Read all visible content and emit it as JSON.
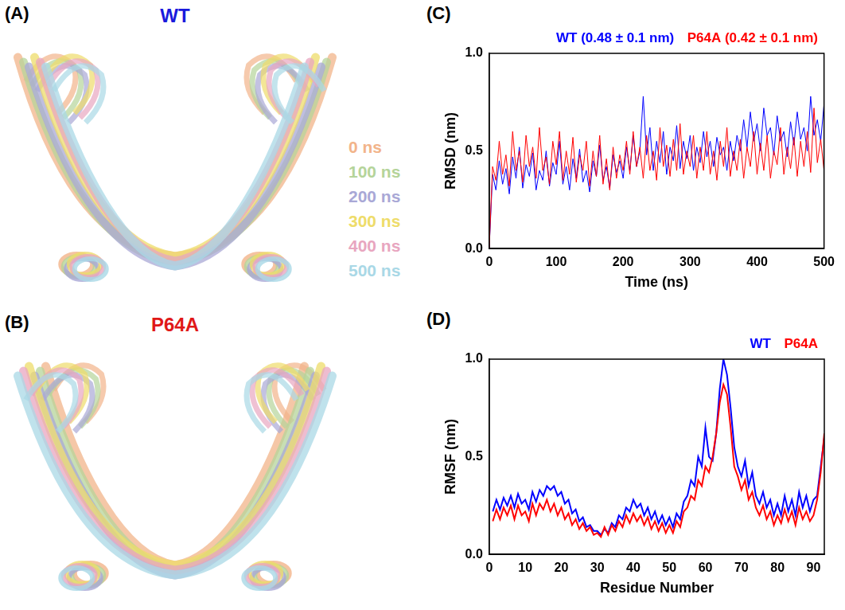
{
  "structure_panels": [
    {
      "letter": "(A)",
      "title": "WT",
      "title_color": "#1a1adc"
    },
    {
      "letter": "(B)",
      "title": "P64A",
      "title_color": "#e01818"
    }
  ],
  "time_legend": [
    {
      "label": "0 ns",
      "color": "#f2b48a"
    },
    {
      "label": "100 ns",
      "color": "#b5d49a"
    },
    {
      "label": "200 ns",
      "color": "#a9a8d6"
    },
    {
      "label": "300 ns",
      "color": "#eedc6a"
    },
    {
      "label": "400 ns",
      "color": "#e8a6c0"
    },
    {
      "label": "500 ns",
      "color": "#a9d8e6"
    }
  ],
  "chart_data": [
    {
      "panel": "(C)",
      "type": "line",
      "x_label": "Time (ns)",
      "y_label": "RMSD (nm)",
      "x": [
        0,
        5,
        10,
        15,
        20,
        25,
        30,
        35,
        40,
        45,
        50,
        55,
        60,
        65,
        70,
        75,
        80,
        85,
        90,
        95,
        100,
        105,
        110,
        115,
        120,
        125,
        130,
        135,
        140,
        145,
        150,
        155,
        160,
        165,
        170,
        175,
        180,
        185,
        190,
        195,
        200,
        205,
        210,
        215,
        220,
        225,
        230,
        235,
        240,
        245,
        250,
        255,
        260,
        265,
        270,
        275,
        280,
        285,
        290,
        295,
        300,
        305,
        310,
        315,
        320,
        325,
        330,
        335,
        340,
        345,
        350,
        355,
        360,
        365,
        370,
        375,
        380,
        385,
        390,
        395,
        400,
        405,
        410,
        415,
        420,
        425,
        430,
        435,
        440,
        445,
        450,
        455,
        460,
        465,
        470,
        475,
        480,
        485,
        490,
        495,
        500
      ],
      "series": [
        {
          "name": "WT (0.48 ± 0.1 nm)",
          "color": "#0000ff",
          "values": [
            0.0,
            0.38,
            0.3,
            0.45,
            0.33,
            0.41,
            0.28,
            0.47,
            0.36,
            0.52,
            0.31,
            0.43,
            0.37,
            0.49,
            0.3,
            0.4,
            0.35,
            0.5,
            0.32,
            0.44,
            0.38,
            0.55,
            0.33,
            0.42,
            0.3,
            0.46,
            0.36,
            0.51,
            0.34,
            0.4,
            0.29,
            0.45,
            0.37,
            0.53,
            0.35,
            0.42,
            0.31,
            0.48,
            0.39,
            0.45,
            0.36,
            0.52,
            0.4,
            0.58,
            0.42,
            0.5,
            0.78,
            0.48,
            0.62,
            0.4,
            0.55,
            0.44,
            0.6,
            0.38,
            0.52,
            0.45,
            0.63,
            0.41,
            0.55,
            0.46,
            0.58,
            0.4,
            0.52,
            0.44,
            0.6,
            0.47,
            0.55,
            0.42,
            0.57,
            0.48,
            0.52,
            0.4,
            0.55,
            0.45,
            0.58,
            0.5,
            0.66,
            0.52,
            0.7,
            0.55,
            0.64,
            0.5,
            0.72,
            0.58,
            0.62,
            0.48,
            0.68,
            0.55,
            0.6,
            0.47,
            0.65,
            0.53,
            0.7,
            0.56,
            0.62,
            0.5,
            0.78,
            0.58,
            0.66,
            0.55,
            0.74
          ]
        },
        {
          "name": "P64A (0.42 ± 0.1 nm)",
          "color": "#ff0000",
          "values": [
            0.0,
            0.42,
            0.35,
            0.55,
            0.38,
            0.48,
            0.32,
            0.6,
            0.4,
            0.5,
            0.34,
            0.58,
            0.42,
            0.52,
            0.36,
            0.62,
            0.4,
            0.47,
            0.33,
            0.55,
            0.43,
            0.6,
            0.35,
            0.5,
            0.38,
            0.57,
            0.34,
            0.48,
            0.4,
            0.55,
            0.32,
            0.5,
            0.37,
            0.58,
            0.33,
            0.46,
            0.3,
            0.52,
            0.36,
            0.48,
            0.4,
            0.55,
            0.38,
            0.6,
            0.42,
            0.52,
            0.36,
            0.58,
            0.4,
            0.5,
            0.35,
            0.62,
            0.42,
            0.53,
            0.37,
            0.56,
            0.4,
            0.64,
            0.38,
            0.5,
            0.42,
            0.58,
            0.36,
            0.52,
            0.4,
            0.6,
            0.38,
            0.5,
            0.35,
            0.55,
            0.42,
            0.62,
            0.37,
            0.5,
            0.4,
            0.56,
            0.36,
            0.52,
            0.42,
            0.6,
            0.38,
            0.54,
            0.4,
            0.58,
            0.36,
            0.5,
            0.43,
            0.62,
            0.38,
            0.52,
            0.41,
            0.57,
            0.37,
            0.55,
            0.42,
            0.6,
            0.39,
            0.72,
            0.44,
            0.56,
            0.4
          ]
        }
      ],
      "xlim": [
        0,
        500
      ],
      "xticks": [
        0,
        100,
        200,
        300,
        400,
        500
      ],
      "ylim": [
        0,
        1
      ],
      "yticks": [
        {
          "value": 0,
          "label": "0.0"
        },
        {
          "value": 0.5,
          "label": "0.5"
        },
        {
          "value": 1,
          "label": "1.0"
        }
      ],
      "grid": false,
      "legend": "top-right"
    },
    {
      "panel": "(D)",
      "type": "line",
      "x_label": "Residue Number",
      "y_label": "RMSF (nm)",
      "x": [
        1,
        2,
        3,
        4,
        5,
        6,
        7,
        8,
        9,
        10,
        11,
        12,
        13,
        14,
        15,
        16,
        17,
        18,
        19,
        20,
        21,
        22,
        23,
        24,
        25,
        26,
        27,
        28,
        29,
        30,
        31,
        32,
        33,
        34,
        35,
        36,
        37,
        38,
        39,
        40,
        41,
        42,
        43,
        44,
        45,
        46,
        47,
        48,
        49,
        50,
        51,
        52,
        53,
        54,
        55,
        56,
        57,
        58,
        59,
        60,
        61,
        62,
        63,
        64,
        65,
        66,
        67,
        68,
        69,
        70,
        71,
        72,
        73,
        74,
        75,
        76,
        77,
        78,
        79,
        80,
        81,
        82,
        83,
        84,
        85,
        86,
        87,
        88,
        89,
        90,
        91,
        92,
        93
      ],
      "series": [
        {
          "name": "WT",
          "color": "#0000ff",
          "values": [
            0.22,
            0.28,
            0.23,
            0.29,
            0.25,
            0.3,
            0.24,
            0.31,
            0.26,
            0.28,
            0.23,
            0.32,
            0.27,
            0.33,
            0.3,
            0.35,
            0.33,
            0.35,
            0.3,
            0.32,
            0.26,
            0.28,
            0.21,
            0.23,
            0.17,
            0.19,
            0.14,
            0.15,
            0.12,
            0.12,
            0.1,
            0.13,
            0.11,
            0.16,
            0.14,
            0.2,
            0.18,
            0.24,
            0.22,
            0.28,
            0.24,
            0.26,
            0.2,
            0.24,
            0.18,
            0.22,
            0.16,
            0.2,
            0.15,
            0.19,
            0.14,
            0.21,
            0.18,
            0.27,
            0.3,
            0.38,
            0.35,
            0.5,
            0.45,
            0.65,
            0.5,
            0.48,
            0.62,
            0.85,
            1.0,
            0.92,
            0.75,
            0.55,
            0.45,
            0.4,
            0.48,
            0.35,
            0.42,
            0.3,
            0.26,
            0.32,
            0.24,
            0.28,
            0.2,
            0.26,
            0.2,
            0.3,
            0.22,
            0.28,
            0.2,
            0.32,
            0.24,
            0.3,
            0.22,
            0.28,
            0.3,
            0.45,
            0.6
          ]
        },
        {
          "name": "P64A",
          "color": "#ff0000",
          "values": [
            0.17,
            0.23,
            0.18,
            0.24,
            0.2,
            0.25,
            0.18,
            0.25,
            0.2,
            0.22,
            0.17,
            0.26,
            0.2,
            0.26,
            0.23,
            0.28,
            0.22,
            0.26,
            0.2,
            0.24,
            0.18,
            0.21,
            0.15,
            0.18,
            0.13,
            0.16,
            0.12,
            0.14,
            0.1,
            0.11,
            0.09,
            0.14,
            0.1,
            0.15,
            0.12,
            0.17,
            0.14,
            0.2,
            0.16,
            0.21,
            0.17,
            0.2,
            0.15,
            0.19,
            0.13,
            0.17,
            0.12,
            0.16,
            0.11,
            0.15,
            0.11,
            0.17,
            0.14,
            0.22,
            0.24,
            0.3,
            0.28,
            0.38,
            0.35,
            0.45,
            0.42,
            0.5,
            0.62,
            0.78,
            0.87,
            0.82,
            0.65,
            0.45,
            0.4,
            0.33,
            0.38,
            0.28,
            0.32,
            0.24,
            0.2,
            0.25,
            0.18,
            0.22,
            0.15,
            0.2,
            0.16,
            0.23,
            0.17,
            0.22,
            0.15,
            0.24,
            0.18,
            0.22,
            0.17,
            0.2,
            0.28,
            0.42,
            0.62
          ]
        }
      ],
      "xlim": [
        0,
        93
      ],
      "xticks": [
        0,
        10,
        20,
        30,
        40,
        50,
        60,
        70,
        80,
        90
      ],
      "ylim": [
        0,
        1
      ],
      "yticks": [
        {
          "value": 0,
          "label": "0.0"
        },
        {
          "value": 0.5,
          "label": "0.5"
        },
        {
          "value": 1,
          "label": "1.0"
        }
      ],
      "grid": false,
      "legend": "top-right"
    }
  ]
}
